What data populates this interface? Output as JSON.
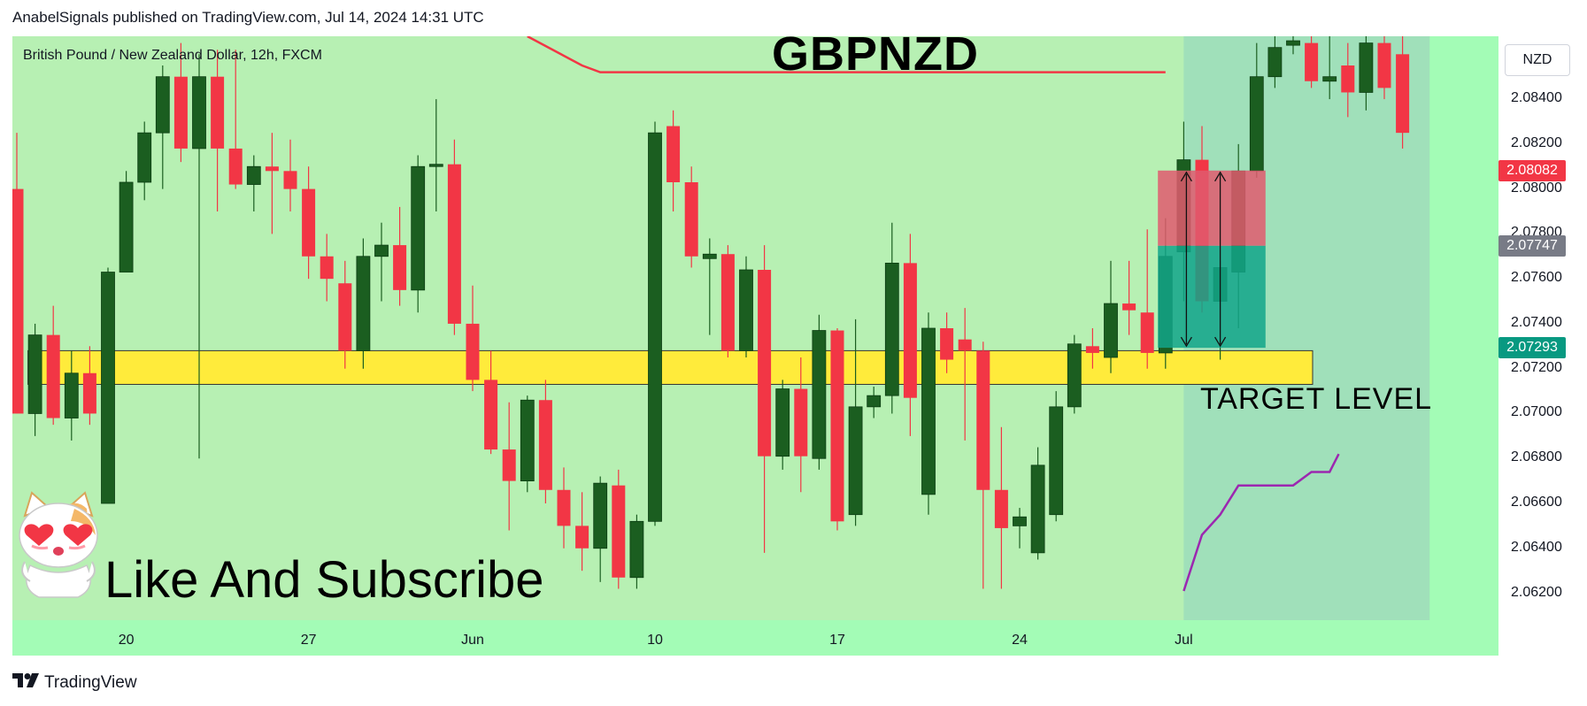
{
  "header": {
    "published": "AnabelSignals published on TradingView.com, Jul 14, 2024 14:31 UTC"
  },
  "symbol": {
    "description": "British Pound / New Zealand Dollar, 12h, FXCM",
    "ticker": "GBPNZD",
    "currency": "NZD"
  },
  "annotations": {
    "target": "TARGET LEVEL",
    "cta": "Like And Subscribe",
    "mascot_icon": "cat-heart-eyes-icon"
  },
  "footer": {
    "brand": "TradingView",
    "logo_icon": "tradingview-logo-icon"
  },
  "colors": {
    "up": "#1b5e20",
    "down": "#f23645",
    "background": "#a3fcb6",
    "zone": "#ffeb3b",
    "stop_zone": "#e05a6f",
    "target_zone": "#12a58a",
    "resistance": "#f23645",
    "support": "#9c27b0",
    "overlay": "#c8e6b0"
  },
  "chart_data": {
    "type": "candlestick",
    "title": "GBPNZD",
    "subtitle": "British Pound / New Zealand Dollar, 12h, FXCM",
    "ylim": [
      2.0608,
      2.0868
    ],
    "y_ticks": [
      "2.08400",
      "2.08200",
      "2.08000",
      "2.07800",
      "2.07600",
      "2.07400",
      "2.07200",
      "2.07000",
      "2.06800",
      "2.06600",
      "2.06400",
      "2.06200"
    ],
    "y_tick_values": [
      2.084,
      2.082,
      2.08,
      2.078,
      2.076,
      2.074,
      2.072,
      2.07,
      2.068,
      2.066,
      2.064,
      2.062
    ],
    "x_ticks": [
      {
        "label": "20",
        "index": 6
      },
      {
        "label": "27",
        "index": 16
      },
      {
        "label": "Jun",
        "index": 25
      },
      {
        "label": "10",
        "index": 35
      },
      {
        "label": "17",
        "index": 45
      },
      {
        "label": "24",
        "index": 55
      },
      {
        "label": "Jul",
        "index": 64
      }
    ],
    "candles": [
      {
        "o": 2.08,
        "h": 2.0825,
        "l": 2.07,
        "c": 2.07
      },
      {
        "o": 2.07,
        "h": 2.074,
        "l": 2.069,
        "c": 2.0735
      },
      {
        "o": 2.0735,
        "h": 2.0748,
        "l": 2.0695,
        "c": 2.0698
      },
      {
        "o": 2.0698,
        "h": 2.0728,
        "l": 2.0688,
        "c": 2.0718
      },
      {
        "o": 2.0718,
        "h": 2.073,
        "l": 2.0695,
        "c": 2.07
      },
      {
        "o": 2.066,
        "h": 2.0765,
        "l": 2.066,
        "c": 2.0763
      },
      {
        "o": 2.0763,
        "h": 2.0808,
        "l": 2.0763,
        "c": 2.0803
      },
      {
        "o": 2.0803,
        "h": 2.083,
        "l": 2.0795,
        "c": 2.0825
      },
      {
        "o": 2.0825,
        "h": 2.0855,
        "l": 2.08,
        "c": 2.085
      },
      {
        "o": 2.085,
        "h": 2.0865,
        "l": 2.0812,
        "c": 2.0818
      },
      {
        "o": 2.0818,
        "h": 2.086,
        "l": 2.068,
        "c": 2.085
      },
      {
        "o": 2.085,
        "h": 2.0862,
        "l": 2.079,
        "c": 2.0818
      },
      {
        "o": 2.0818,
        "h": 2.0862,
        "l": 2.08,
        "c": 2.0802
      },
      {
        "o": 2.0802,
        "h": 2.0815,
        "l": 2.079,
        "c": 2.081
      },
      {
        "o": 2.081,
        "h": 2.0825,
        "l": 2.078,
        "c": 2.0808
      },
      {
        "o": 2.0808,
        "h": 2.0822,
        "l": 2.079,
        "c": 2.08
      },
      {
        "o": 2.08,
        "h": 2.081,
        "l": 2.076,
        "c": 2.077
      },
      {
        "o": 2.077,
        "h": 2.078,
        "l": 2.075,
        "c": 2.076
      },
      {
        "o": 2.0758,
        "h": 2.0768,
        "l": 2.072,
        "c": 2.0728
      },
      {
        "o": 2.0728,
        "h": 2.0778,
        "l": 2.072,
        "c": 2.077
      },
      {
        "o": 2.077,
        "h": 2.0785,
        "l": 2.075,
        "c": 2.0775
      },
      {
        "o": 2.0775,
        "h": 2.0792,
        "l": 2.0748,
        "c": 2.0755
      },
      {
        "o": 2.0755,
        "h": 2.0815,
        "l": 2.0745,
        "c": 2.081
      },
      {
        "o": 2.081,
        "h": 2.084,
        "l": 2.079,
        "c": 2.0811
      },
      {
        "o": 2.0811,
        "h": 2.0822,
        "l": 2.0735,
        "c": 2.074
      },
      {
        "o": 2.074,
        "h": 2.0757,
        "l": 2.071,
        "c": 2.0715
      },
      {
        "o": 2.0715,
        "h": 2.0728,
        "l": 2.0682,
        "c": 2.0684
      },
      {
        "o": 2.0684,
        "h": 2.0705,
        "l": 2.0648,
        "c": 2.067
      },
      {
        "o": 2.067,
        "h": 2.0708,
        "l": 2.0665,
        "c": 2.0706
      },
      {
        "o": 2.0706,
        "h": 2.0715,
        "l": 2.066,
        "c": 2.0666
      },
      {
        "o": 2.0666,
        "h": 2.0676,
        "l": 2.064,
        "c": 2.065
      },
      {
        "o": 2.065,
        "h": 2.0665,
        "l": 2.063,
        "c": 2.064
      },
      {
        "o": 2.064,
        "h": 2.0672,
        "l": 2.0625,
        "c": 2.0669
      },
      {
        "o": 2.0668,
        "h": 2.0675,
        "l": 2.0622,
        "c": 2.0627
      },
      {
        "o": 2.0627,
        "h": 2.0655,
        "l": 2.0622,
        "c": 2.0652
      },
      {
        "o": 2.0652,
        "h": 2.083,
        "l": 2.065,
        "c": 2.0825
      },
      {
        "o": 2.0828,
        "h": 2.0835,
        "l": 2.079,
        "c": 2.0803
      },
      {
        "o": 2.0803,
        "h": 2.081,
        "l": 2.0765,
        "c": 2.077
      },
      {
        "o": 2.0769,
        "h": 2.0778,
        "l": 2.0735,
        "c": 2.0771
      },
      {
        "o": 2.0771,
        "h": 2.0775,
        "l": 2.0725,
        "c": 2.0728
      },
      {
        "o": 2.0728,
        "h": 2.077,
        "l": 2.0725,
        "c": 2.0764
      },
      {
        "o": 2.0764,
        "h": 2.0775,
        "l": 2.0638,
        "c": 2.0681
      },
      {
        "o": 2.0681,
        "h": 2.0715,
        "l": 2.0675,
        "c": 2.0711
      },
      {
        "o": 2.0711,
        "h": 2.0725,
        "l": 2.0665,
        "c": 2.0681
      },
      {
        "o": 2.068,
        "h": 2.0744,
        "l": 2.0675,
        "c": 2.0737
      },
      {
        "o": 2.0737,
        "h": 2.0738,
        "l": 2.0648,
        "c": 2.0652
      },
      {
        "o": 2.0655,
        "h": 2.0742,
        "l": 2.065,
        "c": 2.0703
      },
      {
        "o": 2.0703,
        "h": 2.0712,
        "l": 2.0698,
        "c": 2.0708
      },
      {
        "o": 2.0708,
        "h": 2.0785,
        "l": 2.07,
        "c": 2.0767
      },
      {
        "o": 2.0767,
        "h": 2.078,
        "l": 2.069,
        "c": 2.0707
      },
      {
        "o": 2.0664,
        "h": 2.0745,
        "l": 2.0655,
        "c": 2.0738
      },
      {
        "o": 2.0738,
        "h": 2.0745,
        "l": 2.0718,
        "c": 2.0724
      },
      {
        "o": 2.0733,
        "h": 2.0747,
        "l": 2.0688,
        "c": 2.0728
      },
      {
        "o": 2.0728,
        "h": 2.0732,
        "l": 2.0622,
        "c": 2.0666
      },
      {
        "o": 2.0666,
        "h": 2.0694,
        "l": 2.0622,
        "c": 2.0649
      },
      {
        "o": 2.065,
        "h": 2.0658,
        "l": 2.064,
        "c": 2.0654
      },
      {
        "o": 2.0638,
        "h": 2.0685,
        "l": 2.0635,
        "c": 2.0677
      },
      {
        "o": 2.0655,
        "h": 2.071,
        "l": 2.0652,
        "c": 2.0703
      },
      {
        "o": 2.0703,
        "h": 2.0735,
        "l": 2.07,
        "c": 2.0731
      },
      {
        "o": 2.073,
        "h": 2.0738,
        "l": 2.072,
        "c": 2.0727
      },
      {
        "o": 2.0725,
        "h": 2.0768,
        "l": 2.0718,
        "c": 2.0749
      },
      {
        "o": 2.0749,
        "h": 2.0768,
        "l": 2.0735,
        "c": 2.0746
      },
      {
        "o": 2.0745,
        "h": 2.0782,
        "l": 2.072,
        "c": 2.0727
      },
      {
        "o": 2.0727,
        "h": 2.0787,
        "l": 2.072,
        "c": 2.077
      },
      {
        "o": 2.0772,
        "h": 2.083,
        "l": 2.075,
        "c": 2.0813
      },
      {
        "o": 2.0813,
        "h": 2.0828,
        "l": 2.0745,
        "c": 2.075
      },
      {
        "o": 2.075,
        "h": 2.0768,
        "l": 2.0724,
        "c": 2.0765
      },
      {
        "o": 2.0763,
        "h": 2.082,
        "l": 2.0738,
        "c": 2.0808
      },
      {
        "o": 2.0808,
        "h": 2.0865,
        "l": 2.0805,
        "c": 2.085
      },
      {
        "o": 2.085,
        "h": 2.0868,
        "l": 2.0845,
        "c": 2.0863
      },
      {
        "o": 2.0864,
        "h": 2.0868,
        "l": 2.086,
        "c": 2.0866
      },
      {
        "o": 2.0865,
        "h": 2.0868,
        "l": 2.0845,
        "c": 2.0848
      },
      {
        "o": 2.0848,
        "h": 2.0868,
        "l": 2.084,
        "c": 2.085
      },
      {
        "o": 2.0855,
        "h": 2.0865,
        "l": 2.0832,
        "c": 2.0843
      },
      {
        "o": 2.0843,
        "h": 2.0868,
        "l": 2.0835,
        "c": 2.0865
      },
      {
        "o": 2.0865,
        "h": 2.0868,
        "l": 2.084,
        "c": 2.0845
      },
      {
        "o": 2.086,
        "h": 2.0868,
        "l": 2.0818,
        "c": 2.0825
      }
    ],
    "zones": {
      "target_band": [
        2.0713,
        2.0728
      ],
      "position_entry": 2.07747,
      "position_stop": 2.08082,
      "position_target": 2.07293
    },
    "price_tags": [
      {
        "label": "2.08082",
        "value": 2.08082,
        "color": "#f23645"
      },
      {
        "label": "2.07747",
        "value": 2.07747,
        "color": "#787b86"
      },
      {
        "label": "2.07293",
        "value": 2.07293,
        "color": "#089981"
      }
    ]
  }
}
